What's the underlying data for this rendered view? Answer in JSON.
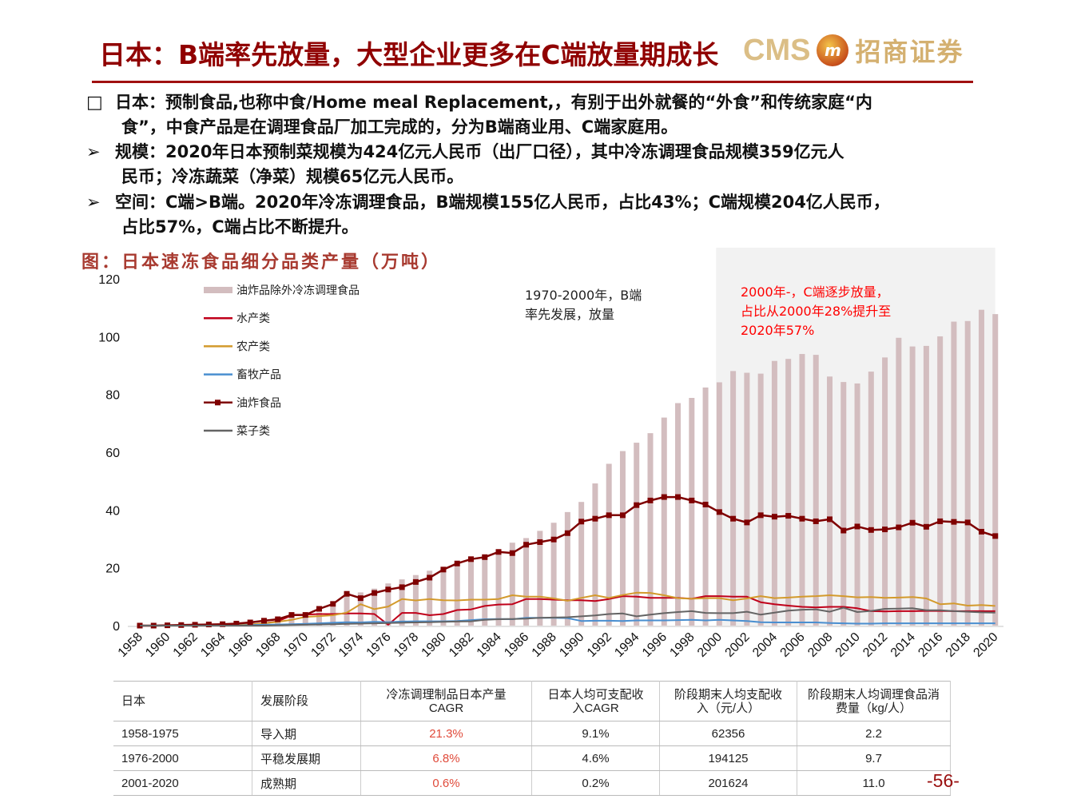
{
  "header": {
    "title": "日本：B端率先放量，大型企业更多在C端放量期成长",
    "logo": {
      "latin": "CMS",
      "emblem": "m",
      "chinese": "招商证券"
    }
  },
  "bullets": [
    {
      "marker": "square",
      "lines": [
        "日本：预制食品,也称中食/Home meal Replacement,，有别于出外就餐的“外食”和传统家庭“内",
        "食”，中食产品是在调理食品厂加工完成的，分为B端商业用、C端家庭用。"
      ]
    },
    {
      "marker": "arrow",
      "lines": [
        "规模：2020年日本预制菜规模为424亿元人民币（出厂口径），其中冷冻调理食品规模359亿元人",
        "民币；冷冻蔬菜（净菜）规模65亿元人民币。"
      ]
    },
    {
      "marker": "arrow",
      "lines": [
        "空间：C端>B端。2020年冷冻调理食品，B端规模155亿人民币，占比43%；C端规模204亿人民币，",
        "占比57%，C端占比不断提升。"
      ]
    }
  ],
  "figure_title": "图：日本速冻食品细分品类产量（万吨）",
  "chart_data": {
    "type": "bar+line",
    "yticks": [
      0,
      20,
      40,
      60,
      80,
      100,
      120
    ],
    "ylim": [
      0,
      120
    ],
    "grid": false,
    "legend_position": "top-left",
    "x": [
      1958,
      1959,
      1960,
      1961,
      1962,
      1963,
      1964,
      1965,
      1966,
      1967,
      1968,
      1969,
      1970,
      1971,
      1972,
      1973,
      1974,
      1975,
      1976,
      1977,
      1978,
      1979,
      1980,
      1981,
      1982,
      1983,
      1984,
      1985,
      1986,
      1987,
      1988,
      1989,
      1990,
      1991,
      1992,
      1993,
      1994,
      1995,
      1996,
      1997,
      1998,
      1999,
      2000,
      2001,
      2002,
      2003,
      2004,
      2005,
      2006,
      2007,
      2008,
      2009,
      2010,
      2011,
      2012,
      2013,
      2014,
      2015,
      2016,
      2017,
      2018,
      2019,
      2020
    ],
    "xticks": [
      "1958",
      "1960",
      "1962",
      "1964",
      "1966",
      "1968",
      "1970",
      "1972",
      "1974",
      "1976",
      "1978",
      "1980",
      "1982",
      "1984",
      "1986",
      "1988",
      "1990",
      "1992",
      "1994",
      "1996",
      "1998",
      "2000",
      "2002",
      "2004",
      "2006",
      "2008",
      "2010",
      "2012",
      "2014",
      "2016",
      "2018",
      "2020"
    ],
    "series": [
      {
        "name": "油炸品除外冷冻调理食品",
        "kind": "bar",
        "color": "#d3bdbf",
        "values": [
          0.1,
          0.1,
          0.2,
          0.3,
          0.4,
          0.5,
          0.6,
          0.8,
          1.2,
          1.8,
          2.5,
          3.2,
          3.6,
          4.5,
          6.4,
          11,
          11.5,
          12.8,
          14.6,
          16,
          17.5,
          19,
          20.2,
          20.6,
          22.5,
          23.5,
          25,
          28.7,
          30.3,
          32.8,
          35.6,
          39.3,
          42.8,
          49.2,
          56,
          60.4,
          63.3,
          66.6,
          72,
          77,
          78.8,
          82.4,
          84.2,
          88.1,
          87.5,
          87.2,
          91.6,
          92.3,
          94,
          93.7,
          86.2,
          84.3,
          83.8,
          87.9,
          92.8,
          99.6,
          96.6,
          96.8,
          100.1,
          105.2,
          105.4,
          109.3,
          107.8
        ]
      },
      {
        "name": "水产类",
        "kind": "line",
        "color": "#c0001a",
        "values": [
          0,
          0,
          0,
          0,
          0,
          0.1,
          0.1,
          0.2,
          0.4,
          0.8,
          1.5,
          3.5,
          3.8,
          4,
          4,
          4.2,
          4.2,
          4,
          0.3,
          4.4,
          4.4,
          3.6,
          4,
          5.4,
          5.6,
          6.8,
          7.3,
          7.4,
          9.2,
          9.2,
          9,
          8.8,
          8.8,
          8.5,
          9.2,
          10.2,
          10,
          9.6,
          9.6,
          9.6,
          9.3,
          10.2,
          10.2,
          10,
          10,
          8.1,
          7.4,
          6.9,
          6.5,
          6.3,
          6.5,
          6.5,
          6,
          5,
          4.9,
          5,
          5,
          5.1,
          5.1,
          5,
          5,
          5,
          5
        ]
      },
      {
        "name": "农产类",
        "kind": "line",
        "color": "#d39a2c",
        "values": [
          0,
          0,
          0,
          0,
          0,
          0.1,
          0.1,
          0.2,
          0.4,
          0.8,
          1.3,
          2,
          3,
          3.3,
          3.6,
          4.5,
          7.4,
          5.7,
          6.6,
          9.2,
          8.7,
          9.2,
          8.8,
          8.7,
          9,
          9,
          9.2,
          10.5,
          10,
          10,
          9.4,
          8.6,
          9.6,
          10.5,
          9.6,
          10.6,
          11.4,
          11.3,
          10.5,
          9.5,
          9.3,
          9.5,
          9.5,
          8.8,
          9.4,
          10.2,
          9.5,
          9.7,
          10,
          10.2,
          10.5,
          10.2,
          9.8,
          9.9,
          9.6,
          9.7,
          9.9,
          9.4,
          7.4,
          7.7,
          6.9,
          7.1,
          6.8
        ]
      },
      {
        "name": "畜牧产品",
        "kind": "line",
        "color": "#4a8fd0",
        "values": [
          0,
          0,
          0,
          0,
          0,
          0,
          0,
          0,
          0.2,
          0.3,
          0.4,
          0.5,
          0.6,
          0.8,
          1,
          1.2,
          1.1,
          1.3,
          1.2,
          1.4,
          1.5,
          1.5,
          1.5,
          1.6,
          1.9,
          2.2,
          2.3,
          2.2,
          2.7,
          2.7,
          2.7,
          2.6,
          1.6,
          1.7,
          1.7,
          1.6,
          1.8,
          1.8,
          1.8,
          1.9,
          2,
          1.8,
          2,
          1.8,
          1.6,
          1.2,
          1.1,
          1.1,
          1.1,
          1.1,
          0.9,
          0.8,
          0.7,
          0.7,
          0.8,
          0.8,
          0.8,
          0.8,
          0.8,
          0.8,
          0.8,
          0.8,
          0.8
        ]
      },
      {
        "name": "油炸食品",
        "kind": "line-marker",
        "color": "#7f0000",
        "values": [
          0,
          0,
          0.1,
          0.2,
          0.3,
          0.4,
          0.5,
          0.7,
          1.1,
          1.7,
          2.2,
          3.7,
          3.7,
          5.8,
          7.5,
          11,
          9.5,
          11.3,
          12.5,
          13.3,
          15.1,
          16.6,
          19.4,
          21.5,
          23,
          23.7,
          25.5,
          25.1,
          28,
          28.9,
          29.8,
          32,
          36,
          37,
          38.2,
          38.2,
          41.7,
          43.3,
          44.5,
          44.5,
          43.3,
          41.9,
          39.3,
          37,
          35.7,
          38.2,
          37.7,
          38,
          37,
          36.1,
          36.8,
          32.9,
          34.3,
          33.1,
          33.3,
          34,
          35.6,
          34.2,
          36.1,
          35.9,
          35.7,
          32.5,
          31
        ]
      },
      {
        "name": "菜子类",
        "kind": "line",
        "color": "#646464",
        "values": [
          0,
          0,
          0,
          0,
          0,
          0,
          0,
          0,
          0,
          0,
          0.1,
          0.2,
          0.3,
          0.4,
          0.5,
          0.6,
          0.7,
          0.8,
          0.9,
          1,
          1.1,
          1.2,
          1.3,
          1.4,
          1.5,
          2,
          2.2,
          2.3,
          2.4,
          2.7,
          2.8,
          2.9,
          3.2,
          3.5,
          4,
          4.2,
          3.2,
          3.8,
          4.3,
          4.7,
          5,
          4.4,
          4.3,
          4.3,
          4.8,
          3.8,
          4.5,
          5.2,
          5.5,
          5.6,
          4.8,
          6.2,
          4.7,
          5.1,
          5.8,
          5.9,
          6,
          5.3,
          5.3,
          5,
          4.8,
          4.6,
          4.5
        ]
      }
    ],
    "shaded_period": {
      "from": 2000,
      "to": 2020,
      "color": "#f2f2f2"
    },
    "annotations": [
      {
        "lines": [
          "1970-2000年，B端",
          "率先发展，放量"
        ],
        "color": "#222222"
      },
      {
        "lines": [
          "2000年-，C端逐步放量，",
          "占比从2000年28%提升至",
          "2020年57%"
        ],
        "color": "#ff0000"
      }
    ]
  },
  "table": {
    "headers": [
      "日本",
      "发展阶段",
      [
        "冷冻调理制品日本产量",
        "CAGR"
      ],
      [
        "日本人均可支配收",
        "入CAGR"
      ],
      [
        "阶段期末人均支配收",
        "入（元/人）"
      ],
      [
        "阶段期末人均调理食品消",
        "费量（kg/人）"
      ]
    ],
    "rows": [
      [
        "1958-1975",
        "导入期",
        "21.3%",
        "9.1%",
        "62356",
        "2.2"
      ],
      [
        "1976-2000",
        "平稳发展期",
        "6.8%",
        "4.6%",
        "194125",
        "9.7"
      ],
      [
        "2001-2020",
        "成熟期",
        "0.6%",
        "0.2%",
        "201624",
        "11.0"
      ]
    ],
    "highlight_color": "#e04a3a"
  },
  "page_number": "-56-"
}
